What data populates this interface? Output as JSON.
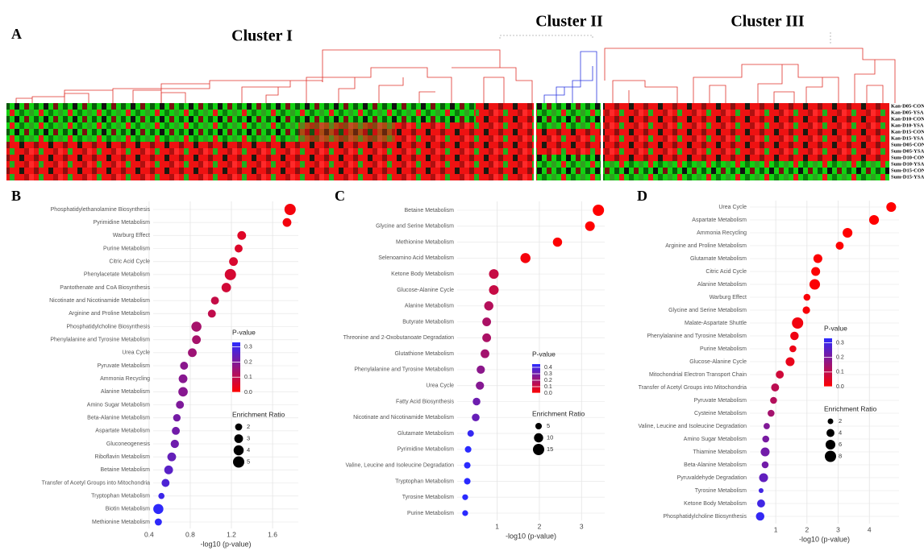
{
  "panel_a": {
    "label": "A",
    "clusters": [
      "Cluster I",
      "Cluster II",
      "Cluster III"
    ],
    "rows": [
      "Kan-D05-CON",
      "Kan-D05-YSA",
      "Kan-D10-CON",
      "Kan-D10-YSA",
      "Kan-D15-CON",
      "Kan-D15-YSA",
      "Sum-D05-CON",
      "Sum-D05-YSA",
      "Sum-D10-CON",
      "Sum-D10-YSA",
      "Sum-D15-CON",
      "Sum-D15-YSA"
    ]
  },
  "chart_data": [
    {
      "type": "dot",
      "title": "B",
      "categories": [
        "Phosphatidylethanolamine Biosynthesis",
        "Pyrimidine Metabolism",
        "Warburg Effect",
        "Purine Metabolism",
        "Citric Acid Cycle",
        "Phenylacetate Metabolism",
        "Pantothenate and CoA Biosynthesis",
        "Nicotinate and Nicotinamide Metabolism",
        "Arginine and Proline Metabolism",
        "Phosphatidylcholine Biosynthesis",
        "Phenylalanine and Tyrosine Metabolism",
        "Urea Cycle",
        "Pyruvate Metabolism",
        "Ammonia Recycling",
        "Alanine Metabolism",
        "Amino Sugar Metabolism",
        "Beta-Alanine Metabolism",
        "Aspartate Metabolism",
        "Gluconeogenesis",
        "Riboflavin Metabolism",
        "Betaine Metabolism",
        "Transfer of Acetyl Groups into Mitochondria",
        "Tryptophan Metabolism",
        "Biotin Metabolism",
        "Methionine Metabolism"
      ],
      "values": [
        1.77,
        1.74,
        1.3,
        1.27,
        1.22,
        1.19,
        1.15,
        1.04,
        1.01,
        0.86,
        0.86,
        0.82,
        0.74,
        0.73,
        0.73,
        0.7,
        0.67,
        0.66,
        0.65,
        0.62,
        0.59,
        0.56,
        0.52,
        0.49,
        0.49
      ],
      "sizes": [
        5,
        3,
        3,
        2.5,
        3,
        5,
        3.5,
        2.5,
        2.5,
        4,
        3,
        3,
        2.5,
        3,
        3.5,
        2.5,
        2.2,
        2.5,
        2.7,
        3,
        3,
        2.5,
        1.5,
        4,
        2
      ],
      "xlabel": "-log10 (p-value)",
      "xlim": [
        0.44,
        1.85
      ],
      "xticks": [
        0.4,
        0.8,
        1.2,
        1.6
      ],
      "colorbar_title": "P-value",
      "colorbar_lim": [
        0,
        0.33
      ],
      "colorbar_ticks": [
        {
          "value": 0,
          "label": "0.0"
        },
        0.1,
        0.2,
        0.3
      ],
      "cmap": [
        "#ff0000",
        "#2a2aff"
      ],
      "size_title": "Enrichment Ratio",
      "size_ticks": [
        2,
        3,
        4,
        5
      ],
      "grid": true
    },
    {
      "type": "dot",
      "title": "C",
      "categories": [
        "Betaine Metabolism",
        "Glycine and Serine Metabolism",
        "Methionine Metabolism",
        "Selenoamino Acid Metabolism",
        "Ketone Body Metabolism",
        "Glucose-Alanine Cycle",
        "Alanine Metabolism",
        "Butyrate Metabolism",
        "Threonine and 2-Oxobutanoate Degradation",
        "Glutathione Metabolism",
        "Phenylalanine and Tyrosine Metabolism",
        "Urea Cycle",
        "Fatty Acid Biosynthesis",
        "Nicotinate and Nicotinamide Metabolism",
        "Glutamate Metabolism",
        "Pyrimidine Metabolism",
        "Valine, Leucine and Isoleucine Degradation",
        "Tryptophan Metabolism",
        "Tyrosine Metabolism",
        "Purine Metabolism"
      ],
      "values": [
        3.4,
        3.2,
        2.43,
        1.67,
        0.92,
        0.92,
        0.8,
        0.75,
        0.75,
        0.71,
        0.61,
        0.59,
        0.51,
        0.49,
        0.37,
        0.31,
        0.29,
        0.29,
        0.24,
        0.24
      ],
      "sizes": [
        15,
        11,
        10,
        12,
        11,
        11,
        10,
        9,
        9,
        9,
        8,
        8,
        7,
        7,
        5,
        5,
        5,
        5,
        4,
        4
      ],
      "xlabel": "-log10 (p-value)",
      "xlim": [
        0.05,
        3.55
      ],
      "xticks": [
        1,
        2,
        3
      ],
      "colorbar_title": "P-value",
      "colorbar_lim": [
        0,
        0.45
      ],
      "colorbar_ticks": [
        {
          "value": 0,
          "label": "0.0"
        },
        0.1,
        0.2,
        0.3,
        0.4
      ],
      "cmap": [
        "#ff0000",
        "#2a2aff"
      ],
      "size_title": "Enrichment Ratio",
      "size_ticks": [
        5,
        10,
        15
      ],
      "grid": true
    },
    {
      "type": "dot",
      "title": "D",
      "categories": [
        "Urea Cycle",
        "Aspartate Metabolism",
        "Ammonia Recycling",
        "Arginine and Proline Metabolism",
        "Glutamate Metabolism",
        "Citric Acid Cycle",
        "Alanine Metabolism",
        "Warburg Effect",
        "Glycine and Serine Metabolism",
        "Malate-Aspartate Shuttle",
        "Phenylalanine and Tyrosine Metabolism",
        "Purine Metabolism",
        "Glucose-Alanine Cycle",
        "Mitochondrial Electron Transport Chain",
        "Transfer of Acetyl Groups into Mitochondria",
        "Pyruvate Metabolism",
        "Cysteine Metabolism",
        "Valine, Leucine and Isoleucine Degradation",
        "Amino Sugar Metabolism",
        "Thiamine Metabolism",
        "Beta-Alanine Metabolism",
        "Pyruvaldehyde Degradation",
        "Tyrosine Metabolism",
        "Ketone Body Metabolism",
        "Phosphatidylcholine Biosynthesis"
      ],
      "values": [
        4.7,
        4.15,
        3.3,
        3.05,
        2.35,
        2.28,
        2.25,
        2.0,
        1.98,
        1.7,
        1.6,
        1.55,
        1.46,
        1.13,
        0.98,
        0.93,
        0.85,
        0.71,
        0.68,
        0.66,
        0.66,
        0.61,
        0.53,
        0.53,
        0.5
      ],
      "sizes": [
        6,
        6,
        6,
        4,
        5,
        5,
        7,
        3,
        3.5,
        8,
        4.5,
        3,
        5,
        4,
        4,
        3,
        3,
        2.5,
        3,
        5,
        3,
        5,
        1.5,
        4,
        4.5
      ],
      "xlabel": "-log10 (p-value)",
      "xlim": [
        0.17,
        4.95
      ],
      "xticks": [
        1,
        2,
        3,
        4
      ],
      "colorbar_title": "P-value",
      "colorbar_lim": [
        0,
        0.33
      ],
      "colorbar_ticks": [
        {
          "value": 0,
          "label": "0.0"
        },
        0.1,
        0.2,
        0.3
      ],
      "cmap": [
        "#ff0000",
        "#2a2aff"
      ],
      "size_title": "Enrichment Ratio",
      "size_ticks": [
        2,
        4,
        6,
        8
      ],
      "grid": true
    }
  ]
}
